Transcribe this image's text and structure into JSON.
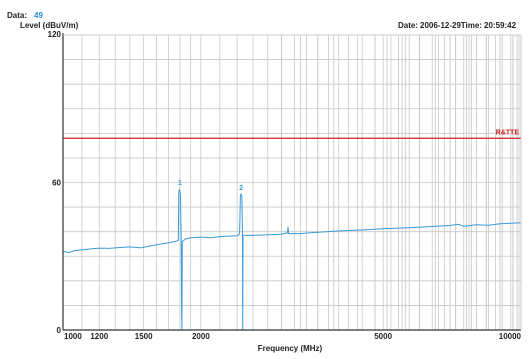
{
  "header": {
    "data_label": "Data:",
    "data_value": "49",
    "date_label": "Date:",
    "date_value": "2006-12-29",
    "time_label": "Time:",
    "time_value": "20:59:42"
  },
  "colors": {
    "trace": "#3a9ad9",
    "limit": "#cc2222",
    "grid": "#c8c8c8",
    "axis": "#333333"
  },
  "chart_data": {
    "type": "line",
    "xlabel": "Frequency (MHz)",
    "ylabel": "Level (dBuV/m)",
    "xscale": "log",
    "xlim": [
      1000,
      10000
    ],
    "ylim": [
      0,
      120
    ],
    "y_tick_labels": [
      "0",
      "60",
      "120"
    ],
    "y_ticks": [
      0,
      60,
      120
    ],
    "x_tick_labels": [
      "1000",
      "1200",
      "1500",
      "2000",
      "5000",
      "10000"
    ],
    "x_ticks": [
      1000,
      1200,
      1500,
      2000,
      5000,
      10000
    ],
    "grid": true,
    "limit_line": {
      "label": "R&TTE",
      "value": 78
    },
    "markers": [
      {
        "label": "1",
        "x": 1800,
        "y": 57
      },
      {
        "label": "2",
        "x": 2450,
        "y": 55
      }
    ],
    "series": [
      {
        "values": [
          [
            1000,
            32
          ],
          [
            1030,
            31.5
          ],
          [
            1060,
            32.3
          ],
          [
            1100,
            32.6
          ],
          [
            1150,
            33
          ],
          [
            1200,
            33.3
          ],
          [
            1260,
            33.2
          ],
          [
            1320,
            33.5
          ],
          [
            1400,
            33.8
          ],
          [
            1480,
            33.4
          ],
          [
            1550,
            34.2
          ],
          [
            1620,
            34.8
          ],
          [
            1700,
            35.5
          ],
          [
            1760,
            36
          ],
          [
            1785,
            36.5
          ],
          [
            1790,
            56
          ],
          [
            1795,
            57
          ],
          [
            1800,
            56.5
          ],
          [
            1805,
            55
          ],
          [
            1812,
            36.5
          ],
          [
            1815,
            8
          ],
          [
            1818,
            0
          ],
          [
            1822,
            36
          ],
          [
            1850,
            37
          ],
          [
            1900,
            37.5
          ],
          [
            2000,
            37.8
          ],
          [
            2100,
            37.5
          ],
          [
            2200,
            38
          ],
          [
            2300,
            38.2
          ],
          [
            2400,
            38.3
          ],
          [
            2430,
            39
          ],
          [
            2440,
            55
          ],
          [
            2450,
            55.3
          ],
          [
            2458,
            54
          ],
          [
            2465,
            38.5
          ],
          [
            2468,
            0
          ],
          [
            2472,
            38.5
          ],
          [
            2550,
            38.5
          ],
          [
            2700,
            38.6
          ],
          [
            2850,
            38.8
          ],
          [
            3000,
            39
          ],
          [
            3090,
            39.5
          ],
          [
            3100,
            42
          ],
          [
            3110,
            39.2
          ],
          [
            3300,
            39.2
          ],
          [
            3500,
            39.6
          ],
          [
            3750,
            40
          ],
          [
            4000,
            40.3
          ],
          [
            4300,
            40.5
          ],
          [
            4600,
            40.8
          ],
          [
            5000,
            41.2
          ],
          [
            5500,
            41.5
          ],
          [
            6000,
            41.8
          ],
          [
            6500,
            42.2
          ],
          [
            7000,
            42.5
          ],
          [
            7300,
            43
          ],
          [
            7500,
            42.2
          ],
          [
            8000,
            42.8
          ],
          [
            8500,
            42.6
          ],
          [
            9000,
            43.2
          ],
          [
            9500,
            43.4
          ],
          [
            10000,
            43.6
          ]
        ]
      }
    ]
  }
}
